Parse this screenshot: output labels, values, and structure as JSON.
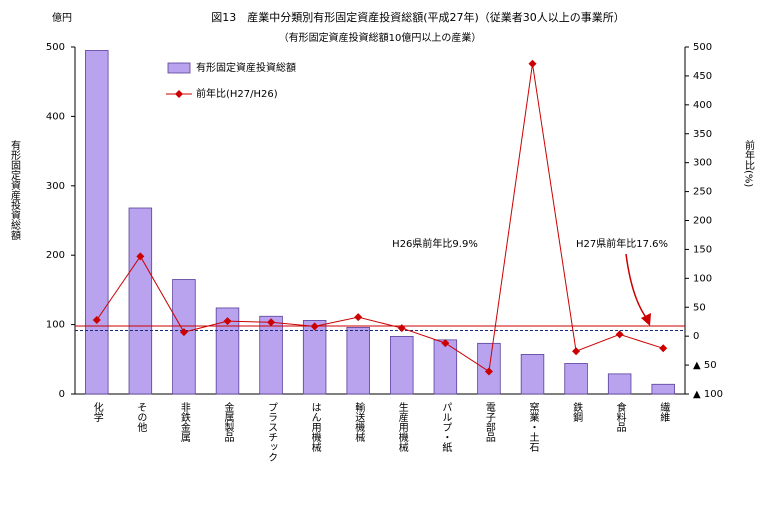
{
  "chart_data": {
    "type": "bar",
    "title": "図13　産業中分類別有形固定資産投資総額(平成27年)（従業者30人以上の事業所）",
    "subtitle": "（有形固定資産投資総額10億円以上の産業）",
    "y_unit": "億円",
    "ylabel": "有形固定資産投資総額",
    "y2label": "前年比(%)",
    "categories": [
      "化学",
      "その他",
      "非鉄金属",
      "金属製品",
      "プラスチック",
      "はん用機械",
      "輸送機械",
      "生産用機械",
      "パルプ・紙",
      "電子部品",
      "窯業・土石",
      "鉄鋼",
      "食料品",
      "繊維"
    ],
    "series": [
      {
        "name": "有形固定資産投資総額",
        "type": "bar",
        "color": "#b9a3ee",
        "values": [
          495,
          268,
          165,
          124,
          112,
          106,
          96,
          83,
          78,
          73,
          57,
          44,
          29,
          14
        ]
      },
      {
        "name": "前年比(H27/H26)",
        "type": "line",
        "axis": "y2",
        "color": "#cc0000",
        "values": [
          28,
          138,
          7,
          26,
          24,
          17,
          33,
          14,
          -12,
          -61,
          471,
          -26,
          3,
          -21
        ]
      }
    ],
    "ylim": [
      0,
      500
    ],
    "yticks": [
      0,
      100,
      200,
      300,
      400,
      500
    ],
    "y2lim": [
      -100,
      500
    ],
    "y2ticks": [
      {
        "value": -100,
        "label": "▲ 100"
      },
      {
        "value": -50,
        "label": "▲ 50"
      },
      0,
      50,
      100,
      150,
      200,
      250,
      300,
      350,
      400,
      450,
      500
    ],
    "reference_lines": [
      {
        "label": "H26県前年比9.9%",
        "value": 9.9,
        "color": "#1a2a7a",
        "dashed": true
      },
      {
        "label": "H27県前年比17.6%",
        "value": 17.6,
        "color": "#cc0000",
        "dashed": false
      }
    ]
  }
}
